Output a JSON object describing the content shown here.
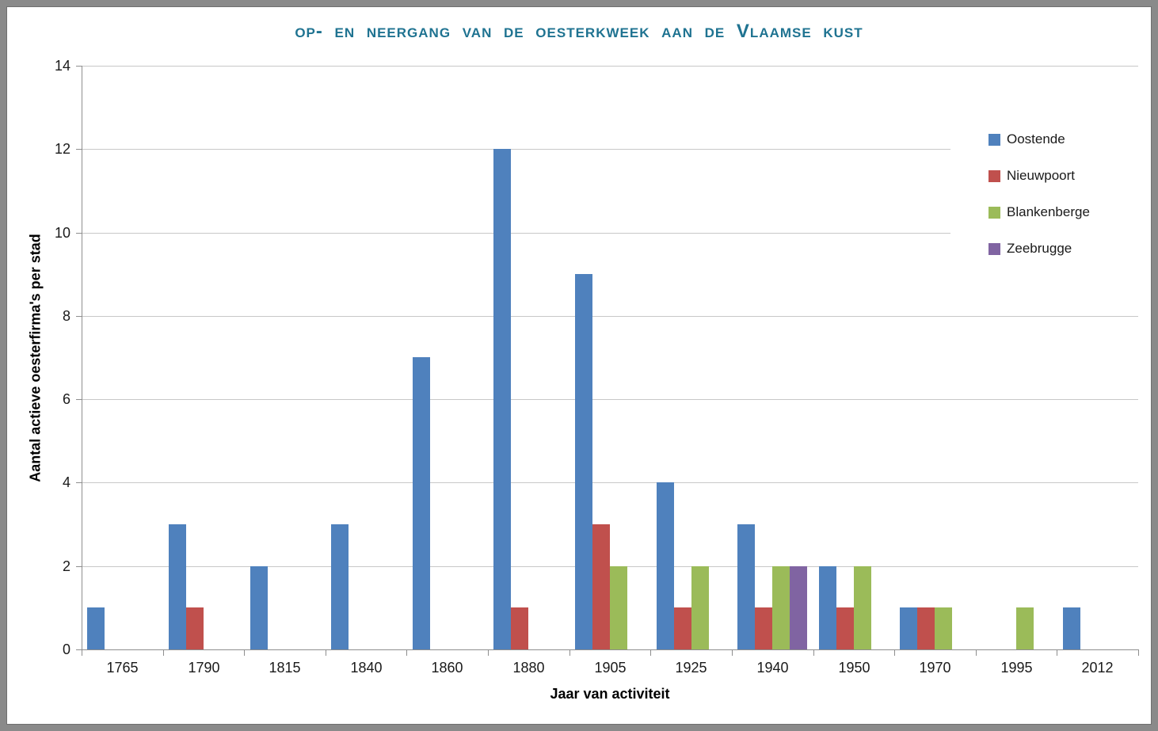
{
  "title": "op- en neergang van de oesterkweek aan de Vlaamse kust",
  "colors": {
    "title_text": "#1F7391",
    "gridline": "#C8C8C8",
    "axis_line": "#8E8E8E",
    "frame_border": "#8A8A8A"
  },
  "chart_data": {
    "type": "bar",
    "title": "op- en neergang van de oesterkweek aan de Vlaamse kust",
    "xlabel": "Jaar van activiteit",
    "ylabel": "Aantal actieve oesterfirma's per stad",
    "categories": [
      "1765",
      "1790",
      "1815",
      "1840",
      "1860",
      "1880",
      "1905",
      "1925",
      "1940",
      "1950",
      "1970",
      "1995",
      "2012"
    ],
    "series": [
      {
        "name": "Oostende",
        "color": "#4F81BD",
        "values": [
          1,
          3,
          2,
          3,
          7,
          12,
          9,
          4,
          3,
          2,
          1,
          0,
          1
        ]
      },
      {
        "name": "Nieuwpoort",
        "color": "#C0504D",
        "values": [
          0,
          1,
          0,
          0,
          0,
          1,
          3,
          1,
          1,
          1,
          1,
          0,
          0
        ]
      },
      {
        "name": "Blankenberge",
        "color": "#9BBB59",
        "values": [
          0,
          0,
          0,
          0,
          0,
          0,
          2,
          2,
          2,
          2,
          1,
          1,
          0
        ]
      },
      {
        "name": "Zeebrugge",
        "color": "#8064A2",
        "values": [
          0,
          0,
          0,
          0,
          0,
          0,
          0,
          0,
          2,
          0,
          0,
          0,
          0
        ]
      }
    ],
    "ylim": [
      0,
      14
    ],
    "ytick_interval": 2,
    "yticks": [
      0,
      2,
      4,
      6,
      8,
      10,
      12,
      14
    ],
    "grid": true,
    "legend_position": "right"
  }
}
